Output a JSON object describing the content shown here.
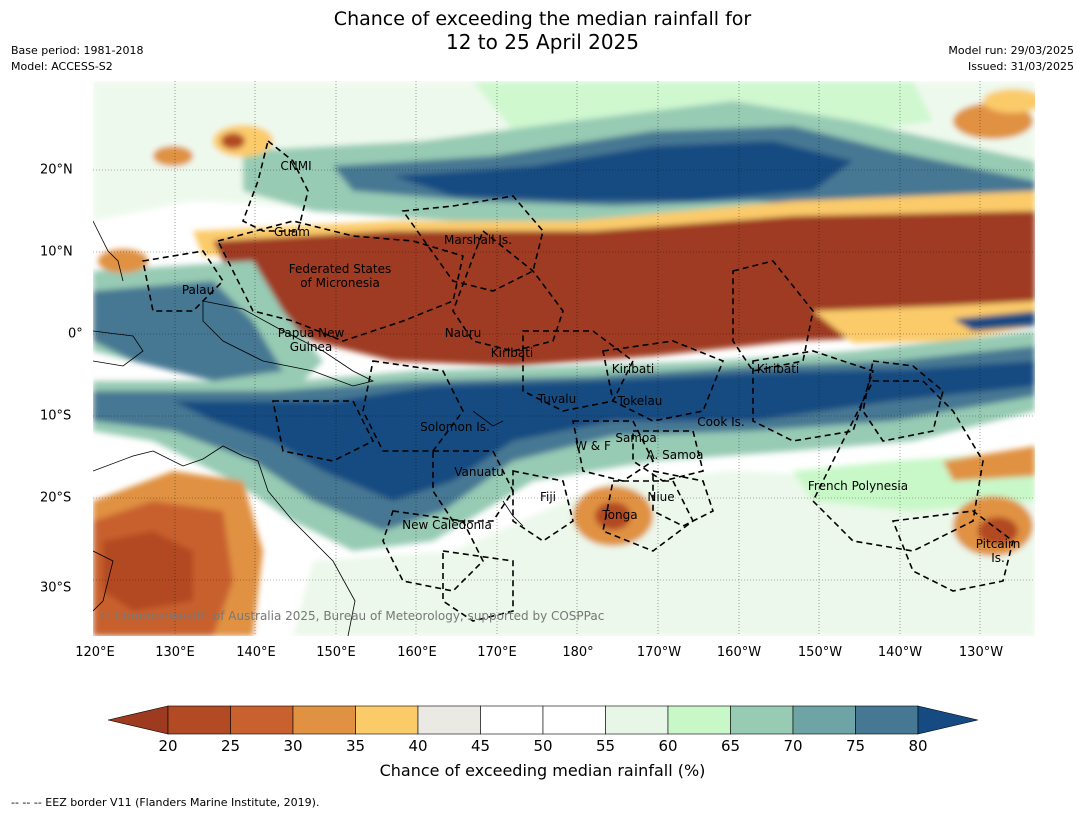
{
  "title": {
    "line1": "Chance of exceeding the median rainfall for",
    "line2": "12 to 25 April 2025"
  },
  "meta_left": {
    "base_period": "Base period: 1981-2018",
    "model": "Model: ACCESS-S2"
  },
  "meta_right": {
    "model_run": "Model run: 29/03/2025",
    "issued": "Issued: 31/03/2025"
  },
  "lat_labels": [
    "20°N",
    "10°N",
    "0°",
    "10°S",
    "20°S",
    "30°S"
  ],
  "lon_labels": [
    "120°E",
    "130°E",
    "140°E",
    "150°E",
    "160°E",
    "170°E",
    "180°",
    "170°W",
    "160°W",
    "150°W",
    "140°W",
    "130°W"
  ],
  "regions": {
    "cnmi": "CNMI",
    "guam": "Guam",
    "marshall": "Marshall Is.",
    "fsm_1": "Federated States",
    "fsm_2": "of Micronesia",
    "palau": "Palau",
    "png_1": "Papua New",
    "png_2": "Guinea",
    "nauru": "Nauru",
    "kiribati_west": "Kiribati",
    "kiribati_central": "Kiribati",
    "kiribati_east": "Kiribati",
    "tuvalu": "Tuvalu",
    "tokelau": "Tokelau",
    "cook": "Cook Is.",
    "solomon": "Solomon Is.",
    "wf": "W & F",
    "samoa": "Samoa",
    "asamoa": "A. Samoa",
    "vanuatu": "Vanuatu",
    "fiji": "Fiji",
    "niue": "Niue",
    "french_polynesia": "French Polynesia",
    "tonga": "Tonga",
    "new_caledonia": "New Caledonia",
    "pitcairn_1": "Pitcairn",
    "pitcairn_2": "Is."
  },
  "copyright": "© Commonwealth of Australia 2025, Bureau of Meteorology, supported by COSPPac",
  "colorbar": {
    "ticks": [
      "20",
      "25",
      "30",
      "35",
      "40",
      "45",
      "50",
      "55",
      "60",
      "65",
      "70",
      "75",
      "80"
    ],
    "colors": [
      "#9e3a20",
      "#b24a24",
      "#c8612e",
      "#e09242",
      "#fbcb6a",
      "#ebe9e4",
      "#ffffff",
      "#ffffff",
      "#e7f6e6",
      "#c8f8c8",
      "#97cbb4",
      "#6ea4a6",
      "#467893",
      "#154b82"
    ],
    "label": "Chance of exceeding median rainfall (%)"
  },
  "footer": "--  --  -- EEZ border V11 (Flanders Marine Institute, 2019)."
}
